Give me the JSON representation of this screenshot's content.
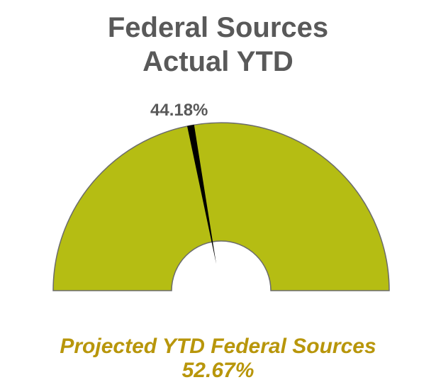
{
  "chart_data": {
    "type": "gauge",
    "title_lines": [
      "Federal Sources",
      "Actual YTD"
    ],
    "value": 44.18,
    "value_label": "44.18%",
    "range": [
      0,
      100
    ],
    "footer_label": "Projected YTD Federal Sources",
    "footer_value": "52.67%"
  },
  "colors": {
    "gauge_fill": "#b5bd13",
    "gauge_outline": "#6b6b6b",
    "needle": "#000000",
    "title": "#595959",
    "footer": "#b8960b"
  }
}
